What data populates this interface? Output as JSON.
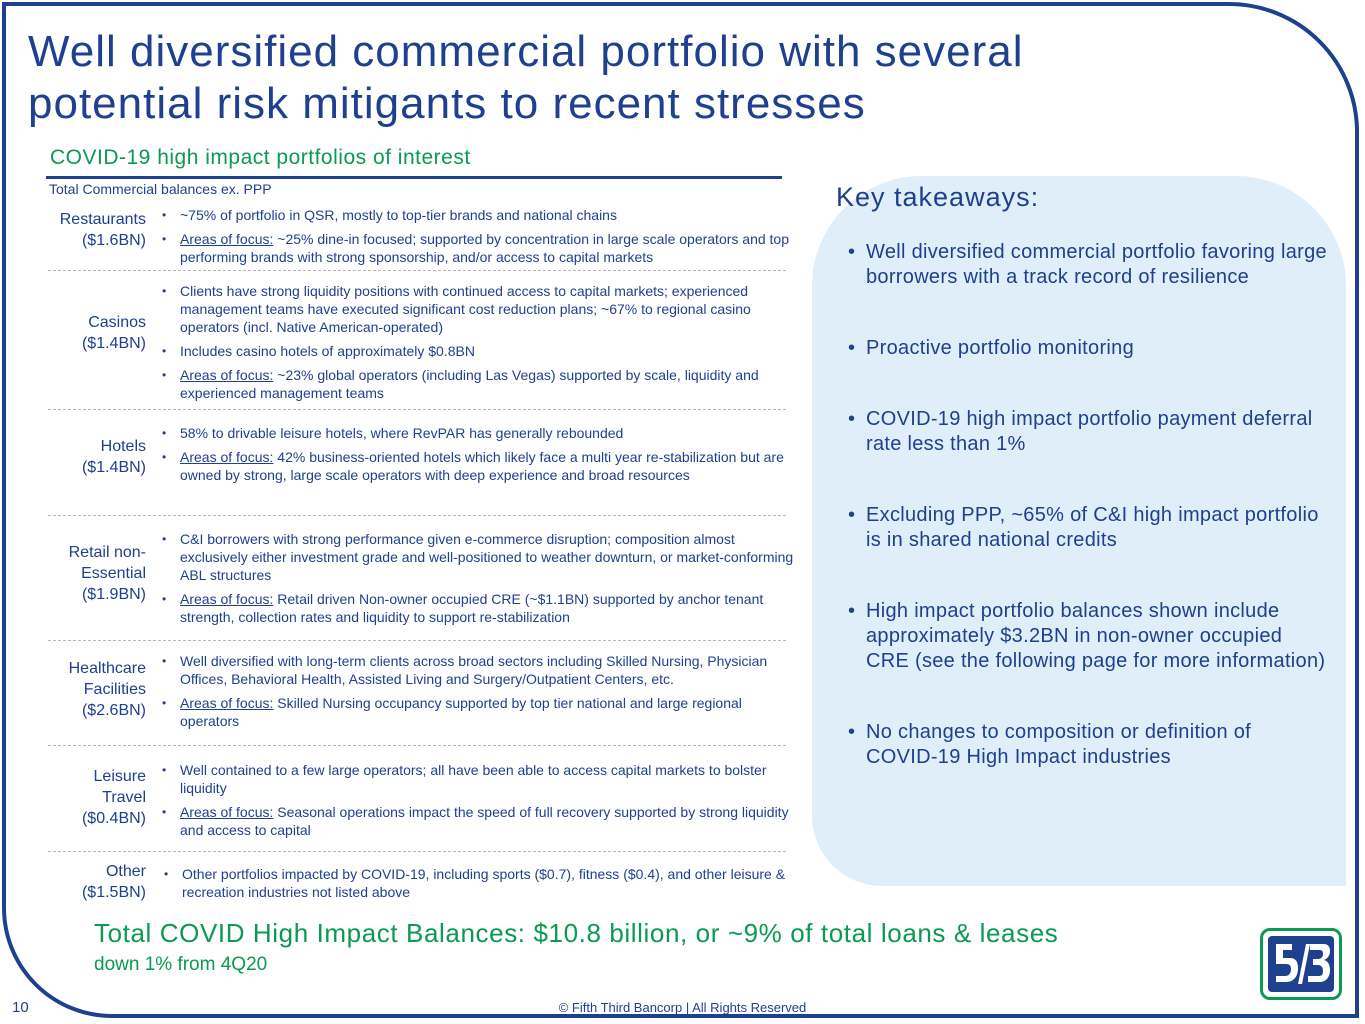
{
  "title": "Well diversified commercial portfolio with several potential risk mitigants to recent stresses",
  "section_heading": "COVID-19 high impact portfolios of interest",
  "subtitle": "Total Commercial balances ex. PPP",
  "focus_label": "Areas of focus:",
  "rows": [
    {
      "label": "Restaurants\n($1.6BN)",
      "bullets": [
        {
          "text": "~75% of portfolio in QSR, mostly to top-tier brands and national chains"
        },
        {
          "text": "~25% dine-in focused; supported by concentration in large scale operators and top performing brands with strong sponsorship, and/or access to capital markets"
        }
      ]
    },
    {
      "label": "Casinos\n($1.4BN)",
      "bullets": [
        {
          "text": "Clients have strong liquidity positions with continued access to capital markets; experienced management teams have executed significant cost reduction plans; ~67% to regional casino operators (incl. Native American-operated)"
        },
        {
          "text": "Includes casino hotels of approximately $0.8BN"
        },
        {
          "text": "~23% global operators (including Las Vegas) supported by scale, liquidity and experienced management teams"
        }
      ]
    },
    {
      "label": "Hotels\n($1.4BN)",
      "bullets": [
        {
          "text": "58% to drivable leisure hotels, where RevPAR has generally rebounded"
        },
        {
          "text": "42% business-oriented hotels which likely face a multi year re-stabilization but are owned by strong, large scale operators with deep experience and broad resources"
        }
      ]
    },
    {
      "label": "Retail non-\nEssential\n($1.9BN)",
      "bullets": [
        {
          "text": "C&I borrowers with strong performance given e-commerce disruption; composition almost exclusively either investment grade and well-positioned to weather downturn, or market-conforming ABL structures"
        },
        {
          "text": "Retail driven Non-owner occupied CRE (~$1.1BN) supported by anchor tenant strength, collection rates and liquidity to support re-stabilization"
        }
      ]
    },
    {
      "label": "Healthcare\nFacilities\n($2.6BN)",
      "bullets": [
        {
          "text": "Well diversified with long-term clients across broad sectors including Skilled Nursing, Physician Offices, Behavioral Health, Assisted Living and Surgery/Outpatient Centers, etc."
        },
        {
          "text": "Skilled Nursing occupancy supported by top tier national and large regional operators"
        }
      ]
    },
    {
      "label": "Leisure\nTravel\n($0.4BN)",
      "bullets": [
        {
          "text": "Well contained to a few large operators; all have been able to access capital markets to bolster liquidity"
        },
        {
          "text": "Seasonal operations impact the speed of full recovery supported by strong liquidity and access to capital"
        }
      ]
    },
    {
      "label": "Other\n($1.5BN)",
      "bullets": [
        {
          "text": "Other portfolios impacted by COVID-19, including sports ($0.7), fitness ($0.4), and other leisure & recreation industries not listed above"
        }
      ]
    }
  ],
  "takeaways": {
    "title": "Key takeaways:",
    "items": [
      "Well diversified commercial portfolio favoring large borrowers with a track record of resilience",
      "Proactive portfolio monitoring",
      "COVID-19 high impact portfolio payment deferral rate less than 1%",
      "Excluding PPP, ~65% of C&I high impact portfolio is in shared national credits",
      "High impact portfolio balances shown include approximately $3.2BN in non-owner occupied CRE (see the following page for more information)",
      "No changes to composition or definition of COVID-19 High Impact industries"
    ]
  },
  "total_line": "Total COVID High Impact Balances: $10.8 billion, or ~9% of total loans & leases",
  "total_sub": "down 1% from 4Q20",
  "page_number": "10",
  "copyright": "© Fifth Third Bancorp | All Rights Reserved",
  "logo_text": "5/3",
  "colors": {
    "brand_blue": "#1f3f8f",
    "brand_green": "#0a9a51",
    "panel_bg": "#dfeef9"
  }
}
